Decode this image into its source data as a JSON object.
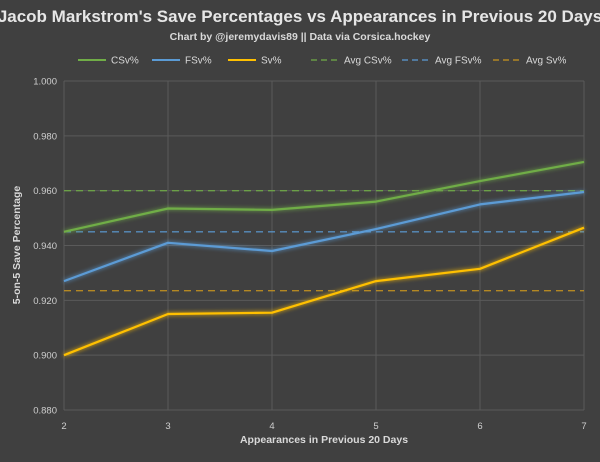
{
  "chart_data": {
    "type": "line",
    "title": "Jacob Markstrom's Save Percentages vs Appearances in Previous 20 Days",
    "subtitle": "Chart by @jeremydavis89  ||  Data via  Corsica.hockey",
    "xlabel": "Appearances in Previous 20 Days",
    "ylabel": "5-on-5 Save Percentage",
    "x": [
      2,
      3,
      4,
      5,
      6,
      7
    ],
    "x_tick_labels": [
      "2",
      "3",
      "4",
      "5",
      "6",
      "7"
    ],
    "ylim": [
      0.88,
      1.0
    ],
    "y_ticks": [
      0.88,
      0.9,
      0.92,
      0.94,
      0.96,
      0.98,
      1.0
    ],
    "y_tick_labels": [
      "0.880",
      "0.900",
      "0.920",
      "0.940",
      "0.960",
      "0.980",
      "1.000"
    ],
    "grid": true,
    "legend_position": "top",
    "series": [
      {
        "name": "CSv%",
        "color": "#70ad47",
        "style": "solid",
        "values": [
          0.945,
          0.9535,
          0.953,
          0.956,
          0.9635,
          0.9705
        ]
      },
      {
        "name": "FSv%",
        "color": "#5b9bd5",
        "style": "solid",
        "values": [
          0.927,
          0.941,
          0.938,
          0.946,
          0.955,
          0.9595
        ]
      },
      {
        "name": "Sv%",
        "color": "#ffc000",
        "style": "solid",
        "values": [
          0.9,
          0.915,
          0.9155,
          0.927,
          0.9315,
          0.9465
        ]
      },
      {
        "name": "Avg CSv%",
        "color": "#70ad47",
        "style": "dashed",
        "values": [
          0.96,
          0.96,
          0.96,
          0.96,
          0.96,
          0.96
        ]
      },
      {
        "name": "Avg FSv%",
        "color": "#5b9bd5",
        "style": "dashed",
        "values": [
          0.945,
          0.945,
          0.945,
          0.945,
          0.945,
          0.945
        ]
      },
      {
        "name": "Avg Sv%",
        "color": "#c9951e",
        "style": "dashed",
        "values": [
          0.9235,
          0.9235,
          0.9235,
          0.9235,
          0.9235,
          0.9235
        ]
      }
    ]
  }
}
